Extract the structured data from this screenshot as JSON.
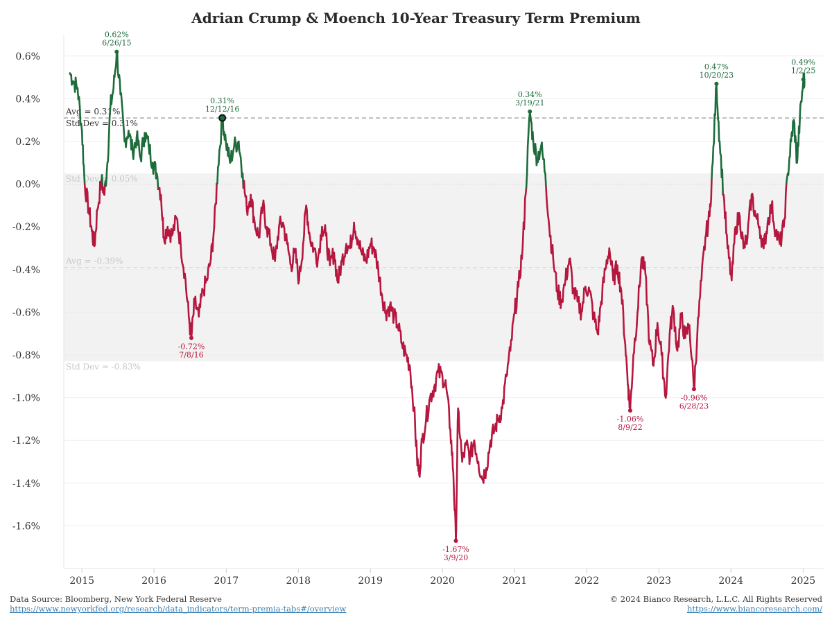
{
  "chart_data": {
    "type": "line",
    "title": "Adrian Crump & Moench 10-Year Treasury Term Premium",
    "xlabel": "",
    "ylabel": "",
    "x_range": [
      "2014-10-01",
      "2025-04-15"
    ],
    "ylim": [
      -1.8,
      0.7
    ],
    "y_ticks": [
      0.6,
      0.4,
      0.2,
      0.0,
      -0.2,
      -0.4,
      -0.6,
      -0.8,
      -1.0,
      -1.2,
      -1.4,
      -1.6
    ],
    "y_tick_labels": [
      "0.6%",
      "0.4%",
      "0.2%",
      "0.0%",
      "-0.2%",
      "-0.4%",
      "-0.6%",
      "-0.8%",
      "-1.0%",
      "-1.2%",
      "-1.4%",
      "-1.6%"
    ],
    "x_ticks": [
      2015,
      2016,
      2017,
      2018,
      2019,
      2020,
      2021,
      2022,
      2023,
      2024,
      2025
    ],
    "x_tick_labels": [
      "2015",
      "2016",
      "2017",
      "2018",
      "2019",
      "2020",
      "2021",
      "2022",
      "2023",
      "2024",
      "2025"
    ],
    "grid": "horizontal",
    "colors": {
      "positive": "#1e6b3c",
      "negative": "#b5173f",
      "band": "#f2f2f2",
      "ref_line": "#9a9a9a"
    },
    "reference_lines": [
      {
        "label": "Avg = 0.31%",
        "value": 0.31
      },
      {
        "label": "Avg = -0.39%",
        "value": -0.39
      }
    ],
    "std_band": {
      "upper": 0.05,
      "lower": -0.83
    },
    "std_labels": [
      {
        "label": "Std Dev = 0.31%",
        "value": 0.31
      },
      {
        "label": "Std Dev = 0.05%",
        "value": 0.05
      },
      {
        "label": "Std Dev = -0.83%",
        "value": -0.83
      }
    ],
    "annotations": [
      {
        "date": "2015-06-26",
        "value": 0.62,
        "value_label": "0.62%",
        "date_label": "6/26/15",
        "kind": "high"
      },
      {
        "date": "2016-07-08",
        "value": -0.72,
        "value_label": "-0.72%",
        "date_label": "7/8/16",
        "kind": "low"
      },
      {
        "date": "2016-12-12",
        "value": 0.31,
        "value_label": "0.31%",
        "date_label": "12/12/16",
        "kind": "high"
      },
      {
        "date": "2020-03-09",
        "value": -1.67,
        "value_label": "-1.67%",
        "date_label": "3/9/20",
        "kind": "low"
      },
      {
        "date": "2021-03-19",
        "value": 0.34,
        "value_label": "0.34%",
        "date_label": "3/19/21",
        "kind": "high"
      },
      {
        "date": "2022-08-09",
        "value": -1.06,
        "value_label": "-1.06%",
        "date_label": "8/9/22",
        "kind": "low"
      },
      {
        "date": "2023-06-28",
        "value": -0.96,
        "value_label": "-0.96%",
        "date_label": "6/28/23",
        "kind": "low"
      },
      {
        "date": "2023-10-20",
        "value": 0.47,
        "value_label": "0.47%",
        "date_label": "10/20/23",
        "kind": "high"
      },
      {
        "date": "2025-01-02",
        "value": 0.49,
        "value_label": "0.49%",
        "date_label": "1/2/25",
        "kind": "high"
      }
    ],
    "series": [
      {
        "points": [
          [
            "2014-11-01",
            0.52
          ],
          [
            "2014-11-20",
            0.48
          ],
          [
            "2014-12-10",
            0.45
          ],
          [
            "2015-01-01",
            0.25
          ],
          [
            "2015-01-15",
            0.0
          ],
          [
            "2015-02-05",
            -0.12
          ],
          [
            "2015-02-20",
            -0.22
          ],
          [
            "2015-03-05",
            -0.29
          ],
          [
            "2015-03-20",
            -0.12
          ],
          [
            "2015-04-10",
            0.02
          ],
          [
            "2015-04-25",
            -0.05
          ],
          [
            "2015-05-10",
            0.1
          ],
          [
            "2015-05-25",
            0.36
          ],
          [
            "2015-06-10",
            0.45
          ],
          [
            "2015-06-26",
            0.62
          ],
          [
            "2015-07-15",
            0.42
          ],
          [
            "2015-08-05",
            0.2
          ],
          [
            "2015-08-25",
            0.25
          ],
          [
            "2015-09-15",
            0.15
          ],
          [
            "2015-10-05",
            0.22
          ],
          [
            "2015-10-25",
            0.12
          ],
          [
            "2015-11-15",
            0.24
          ],
          [
            "2015-12-05",
            0.18
          ],
          [
            "2015-12-25",
            0.1
          ],
          [
            "2016-01-15",
            0.05
          ],
          [
            "2016-02-05",
            -0.05
          ],
          [
            "2016-02-20",
            -0.25
          ],
          [
            "2016-03-10",
            -0.2
          ],
          [
            "2016-04-01",
            -0.24
          ],
          [
            "2016-04-25",
            -0.16
          ],
          [
            "2016-05-15",
            -0.28
          ],
          [
            "2016-06-05",
            -0.42
          ],
          [
            "2016-06-25",
            -0.62
          ],
          [
            "2016-07-08",
            -0.72
          ],
          [
            "2016-07-25",
            -0.55
          ],
          [
            "2016-08-15",
            -0.62
          ],
          [
            "2016-09-05",
            -0.5
          ],
          [
            "2016-09-25",
            -0.45
          ],
          [
            "2016-10-15",
            -0.35
          ],
          [
            "2016-11-01",
            -0.2
          ],
          [
            "2016-11-20",
            0.08
          ],
          [
            "2016-12-12",
            0.31
          ],
          [
            "2016-12-30",
            0.2
          ],
          [
            "2017-01-20",
            0.1
          ],
          [
            "2017-02-10",
            0.18
          ],
          [
            "2017-03-05",
            0.2
          ],
          [
            "2017-03-25",
            0.05
          ],
          [
            "2017-04-15",
            -0.12
          ],
          [
            "2017-05-05",
            -0.05
          ],
          [
            "2017-05-25",
            -0.18
          ],
          [
            "2017-06-15",
            -0.25
          ],
          [
            "2017-07-05",
            -0.1
          ],
          [
            "2017-07-25",
            -0.2
          ],
          [
            "2017-08-15",
            -0.28
          ],
          [
            "2017-09-05",
            -0.36
          ],
          [
            "2017-09-25",
            -0.2
          ],
          [
            "2017-10-15",
            -0.18
          ],
          [
            "2017-11-05",
            -0.28
          ],
          [
            "2017-11-25",
            -0.38
          ],
          [
            "2017-12-15",
            -0.32
          ],
          [
            "2018-01-05",
            -0.45
          ],
          [
            "2018-01-25",
            -0.28
          ],
          [
            "2018-02-10",
            -0.1
          ],
          [
            "2018-03-01",
            -0.25
          ],
          [
            "2018-03-20",
            -0.3
          ],
          [
            "2018-04-10",
            -0.35
          ],
          [
            "2018-05-01",
            -0.2
          ],
          [
            "2018-05-20",
            -0.24
          ],
          [
            "2018-06-10",
            -0.38
          ],
          [
            "2018-07-01",
            -0.32
          ],
          [
            "2018-07-20",
            -0.46
          ],
          [
            "2018-08-10",
            -0.36
          ],
          [
            "2018-09-01",
            -0.28
          ],
          [
            "2018-09-20",
            -0.3
          ],
          [
            "2018-10-10",
            -0.18
          ],
          [
            "2018-10-30",
            -0.26
          ],
          [
            "2018-11-20",
            -0.33
          ],
          [
            "2018-12-10",
            -0.36
          ],
          [
            "2019-01-01",
            -0.28
          ],
          [
            "2019-01-20",
            -0.3
          ],
          [
            "2019-02-10",
            -0.4
          ],
          [
            "2019-03-01",
            -0.52
          ],
          [
            "2019-03-20",
            -0.6
          ],
          [
            "2019-04-10",
            -0.57
          ],
          [
            "2019-05-01",
            -0.62
          ],
          [
            "2019-05-20",
            -0.66
          ],
          [
            "2019-06-10",
            -0.75
          ],
          [
            "2019-07-01",
            -0.8
          ],
          [
            "2019-07-20",
            -0.85
          ],
          [
            "2019-08-10",
            -1.05
          ],
          [
            "2019-08-25",
            -1.28
          ],
          [
            "2019-09-05",
            -1.36
          ],
          [
            "2019-09-20",
            -1.2
          ],
          [
            "2019-10-10",
            -1.1
          ],
          [
            "2019-10-30",
            -1.0
          ],
          [
            "2019-11-20",
            -0.95
          ],
          [
            "2019-12-10",
            -0.88
          ],
          [
            "2020-01-01",
            -0.9
          ],
          [
            "2020-01-20",
            -0.95
          ],
          [
            "2020-02-10",
            -1.15
          ],
          [
            "2020-02-25",
            -1.35
          ],
          [
            "2020-03-09",
            -1.67
          ],
          [
            "2020-03-20",
            -1.05
          ],
          [
            "2020-04-10",
            -1.3
          ],
          [
            "2020-05-01",
            -1.22
          ],
          [
            "2020-05-20",
            -1.28
          ],
          [
            "2020-06-10",
            -1.2
          ],
          [
            "2020-07-01",
            -1.3
          ],
          [
            "2020-07-20",
            -1.38
          ],
          [
            "2020-08-10",
            -1.33
          ],
          [
            "2020-09-01",
            -1.2
          ],
          [
            "2020-09-20",
            -1.15
          ],
          [
            "2020-10-10",
            -1.1
          ],
          [
            "2020-10-30",
            -1.05
          ],
          [
            "2020-11-20",
            -0.9
          ],
          [
            "2020-12-10",
            -0.78
          ],
          [
            "2021-01-01",
            -0.6
          ],
          [
            "2021-01-20",
            -0.48
          ],
          [
            "2021-02-10",
            -0.3
          ],
          [
            "2021-02-25",
            -0.05
          ],
          [
            "2021-03-19",
            0.34
          ],
          [
            "2021-04-05",
            0.2
          ],
          [
            "2021-04-25",
            0.12
          ],
          [
            "2021-05-15",
            0.18
          ],
          [
            "2021-06-05",
            0.05
          ],
          [
            "2021-06-25",
            -0.2
          ],
          [
            "2021-07-15",
            -0.35
          ],
          [
            "2021-08-05",
            -0.5
          ],
          [
            "2021-08-25",
            -0.55
          ],
          [
            "2021-09-15",
            -0.45
          ],
          [
            "2021-10-05",
            -0.35
          ],
          [
            "2021-10-25",
            -0.5
          ],
          [
            "2021-11-15",
            -0.55
          ],
          [
            "2021-12-05",
            -0.6
          ],
          [
            "2021-12-25",
            -0.48
          ],
          [
            "2022-01-15",
            -0.5
          ],
          [
            "2022-02-05",
            -0.62
          ],
          [
            "2022-02-25",
            -0.7
          ],
          [
            "2022-03-15",
            -0.55
          ],
          [
            "2022-04-05",
            -0.4
          ],
          [
            "2022-04-25",
            -0.3
          ],
          [
            "2022-05-15",
            -0.45
          ],
          [
            "2022-06-05",
            -0.38
          ],
          [
            "2022-06-25",
            -0.5
          ],
          [
            "2022-07-15",
            -0.75
          ],
          [
            "2022-07-30",
            -0.95
          ],
          [
            "2022-08-09",
            -1.06
          ],
          [
            "2022-08-25",
            -0.8
          ],
          [
            "2022-09-15",
            -0.6
          ],
          [
            "2022-10-05",
            -0.35
          ],
          [
            "2022-10-25",
            -0.42
          ],
          [
            "2022-11-15",
            -0.75
          ],
          [
            "2022-12-05",
            -0.85
          ],
          [
            "2022-12-25",
            -0.65
          ],
          [
            "2023-01-15",
            -0.8
          ],
          [
            "2023-02-05",
            -1.0
          ],
          [
            "2023-02-25",
            -0.7
          ],
          [
            "2023-03-15",
            -0.58
          ],
          [
            "2023-04-05",
            -0.78
          ],
          [
            "2023-04-25",
            -0.62
          ],
          [
            "2023-05-15",
            -0.72
          ],
          [
            "2023-06-05",
            -0.66
          ],
          [
            "2023-06-28",
            -0.96
          ],
          [
            "2023-07-15",
            -0.7
          ],
          [
            "2023-08-05",
            -0.45
          ],
          [
            "2023-08-25",
            -0.25
          ],
          [
            "2023-09-15",
            -0.15
          ],
          [
            "2023-10-01",
            0.1
          ],
          [
            "2023-10-20",
            0.47
          ],
          [
            "2023-11-05",
            0.2
          ],
          [
            "2023-11-25",
            -0.05
          ],
          [
            "2023-12-15",
            -0.3
          ],
          [
            "2024-01-05",
            -0.45
          ],
          [
            "2024-01-25",
            -0.2
          ],
          [
            "2024-02-15",
            -0.15
          ],
          [
            "2024-03-05",
            -0.3
          ],
          [
            "2024-03-25",
            -0.25
          ],
          [
            "2024-04-15",
            -0.05
          ],
          [
            "2024-05-05",
            -0.15
          ],
          [
            "2024-05-25",
            -0.2
          ],
          [
            "2024-06-15",
            -0.3
          ],
          [
            "2024-07-05",
            -0.18
          ],
          [
            "2024-07-25",
            -0.1
          ],
          [
            "2024-08-15",
            -0.22
          ],
          [
            "2024-09-05",
            -0.28
          ],
          [
            "2024-09-25",
            -0.2
          ],
          [
            "2024-10-15",
            0.05
          ],
          [
            "2024-11-01",
            0.2
          ],
          [
            "2024-11-15",
            0.3
          ],
          [
            "2024-12-01",
            0.1
          ],
          [
            "2024-12-15",
            0.3
          ],
          [
            "2025-01-02",
            0.49
          ],
          [
            "2025-01-08",
            0.48
          ]
        ]
      }
    ]
  },
  "footer": {
    "source": "Data Source: Bloomberg, New York Federal Reserve",
    "source_link": "https://www.newyorkfed.org/research/data_indicators/term-premia-tabs#/overview",
    "copyright": "© 2024 Bianco Research, L.L.C. All Rights Reserved",
    "site_link": "https://www.biancoresearch.com/"
  }
}
